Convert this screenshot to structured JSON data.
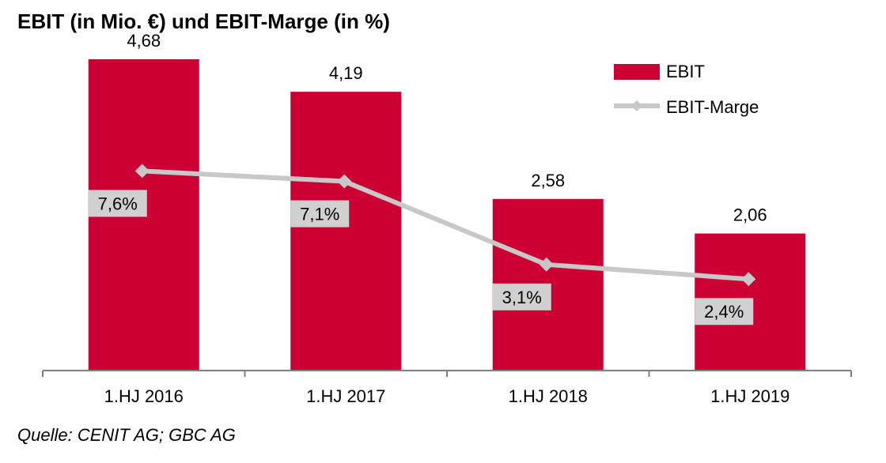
{
  "title": "EBIT (in Mio. €) und EBIT-Marge (in %)",
  "source": "Quelle: CENIT AG; GBC AG",
  "colors": {
    "bar": "#CC0033",
    "line": "#C8C8C8",
    "label_box": "#D0D0D0",
    "axis": "#7F7F7F"
  },
  "chart_data": {
    "type": "bar",
    "categories": [
      "1.HJ 2016",
      "1.HJ 2017",
      "1.HJ 2018",
      "1.HJ 2019"
    ],
    "series": [
      {
        "name": "EBIT",
        "type": "bar",
        "values": [
          4.68,
          4.19,
          2.58,
          2.06
        ],
        "labels": [
          "4,68",
          "4,19",
          "2,58",
          "2,06"
        ]
      },
      {
        "name": "EBIT-Marge",
        "type": "line",
        "values": [
          7.6,
          7.1,
          3.1,
          2.4
        ],
        "labels": [
          "7,6%",
          "7,1%",
          "3,1%",
          "2,4%"
        ]
      }
    ],
    "ylim_bar": [
      0,
      5
    ],
    "ylim_line": [
      -2,
      14
    ],
    "legend_position": "top-right",
    "grid": false
  }
}
